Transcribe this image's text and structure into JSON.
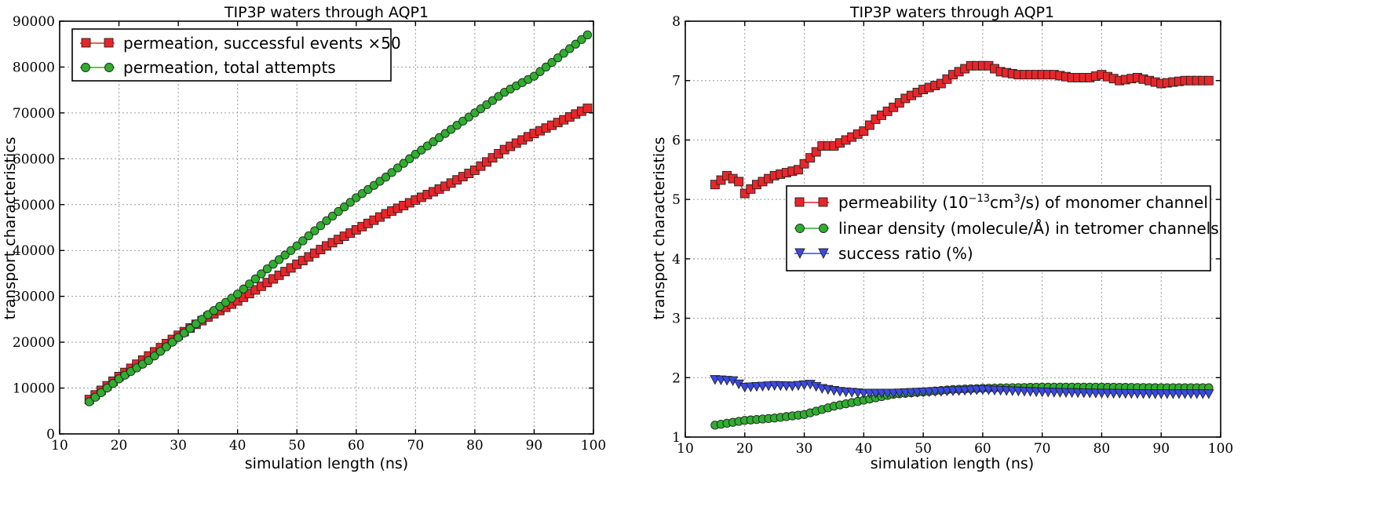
{
  "chart_data": [
    {
      "type": "line",
      "title": "TIP3P waters through AQP1",
      "xlabel": "simulation length (ns)",
      "ylabel": "transport characteristics",
      "xlim": [
        10,
        100
      ],
      "ylim": [
        0,
        90000
      ],
      "xticks": [
        10,
        20,
        30,
        40,
        50,
        60,
        70,
        80,
        90,
        100
      ],
      "yticks": [
        0,
        10000,
        20000,
        30000,
        40000,
        50000,
        60000,
        70000,
        80000,
        90000
      ],
      "grid": true,
      "legend_position": "top-left",
      "series": [
        {
          "name": "permeation, successful events ×50",
          "marker": "square",
          "color": "#e8262a",
          "x_start": 15,
          "x_end": 99,
          "x_step": 1,
          "y_keypoints": [
            [
              15,
              7500
            ],
            [
              20,
              12500
            ],
            [
              25,
              17000
            ],
            [
              30,
              21500
            ],
            [
              35,
              25500
            ],
            [
              40,
              29000
            ],
            [
              45,
              33000
            ],
            [
              50,
              37000
            ],
            [
              55,
              41000
            ],
            [
              60,
              44500
            ],
            [
              65,
              48000
            ],
            [
              70,
              51000
            ],
            [
              75,
              54000
            ],
            [
              80,
              57500
            ],
            [
              85,
              62000
            ],
            [
              90,
              65500
            ],
            [
              95,
              68500
            ],
            [
              99,
              71000
            ]
          ]
        },
        {
          "name": "permeation, total attempts",
          "marker": "circle",
          "color": "#2fae2f",
          "x_start": 15,
          "x_end": 99,
          "x_step": 1,
          "y_keypoints": [
            [
              15,
              7000
            ],
            [
              20,
              12000
            ],
            [
              25,
              16000
            ],
            [
              30,
              21000
            ],
            [
              35,
              26000
            ],
            [
              40,
              30500
            ],
            [
              45,
              36000
            ],
            [
              50,
              41000
            ],
            [
              55,
              46500
            ],
            [
              60,
              51500
            ],
            [
              65,
              56000
            ],
            [
              70,
              61000
            ],
            [
              75,
              65500
            ],
            [
              80,
              70000
            ],
            [
              85,
              74500
            ],
            [
              90,
              78000
            ],
            [
              95,
              83000
            ],
            [
              99,
              87000
            ]
          ]
        }
      ]
    },
    {
      "type": "line",
      "title": "TIP3P waters through AQP1",
      "xlabel": "simulation length (ns)",
      "ylabel": "transport characteristics",
      "xlim": [
        10,
        100
      ],
      "ylim": [
        1,
        8
      ],
      "xticks": [
        10,
        20,
        30,
        40,
        50,
        60,
        70,
        80,
        90,
        100
      ],
      "yticks": [
        1,
        2,
        3,
        4,
        5,
        6,
        7,
        8
      ],
      "grid": true,
      "legend_position": "center-right",
      "series": [
        {
          "name": "permeability (10",
          "name_sup": "−13",
          "name_mid": "cm",
          "name_sup2": "3",
          "name_end": "/s) of monomer channel",
          "marker": "square",
          "color": "#e8262a",
          "x_start": 15,
          "x_end": 98,
          "x_step": 1,
          "y_keypoints": [
            [
              15,
              5.25
            ],
            [
              17,
              5.4
            ],
            [
              19,
              5.3
            ],
            [
              20,
              5.1
            ],
            [
              22,
              5.25
            ],
            [
              25,
              5.4
            ],
            [
              27,
              5.45
            ],
            [
              29,
              5.5
            ],
            [
              30,
              5.6
            ],
            [
              33,
              5.9
            ],
            [
              35,
              5.9
            ],
            [
              37,
              6.0
            ],
            [
              40,
              6.15
            ],
            [
              42,
              6.35
            ],
            [
              45,
              6.55
            ],
            [
              47,
              6.7
            ],
            [
              50,
              6.85
            ],
            [
              53,
              6.95
            ],
            [
              55,
              7.1
            ],
            [
              58,
              7.25
            ],
            [
              61,
              7.25
            ],
            [
              63,
              7.15
            ],
            [
              66,
              7.1
            ],
            [
              70,
              7.1
            ],
            [
              72,
              7.1
            ],
            [
              75,
              7.05
            ],
            [
              78,
              7.05
            ],
            [
              80,
              7.1
            ],
            [
              83,
              7.0
            ],
            [
              86,
              7.05
            ],
            [
              90,
              6.95
            ],
            [
              94,
              7.0
            ],
            [
              98,
              7.0
            ]
          ]
        },
        {
          "name": "linear density (molecule/Å) in tetromer channels",
          "marker": "circle",
          "color": "#2fae2f",
          "x_start": 15,
          "x_end": 98,
          "x_step": 1,
          "y_keypoints": [
            [
              15,
              1.2
            ],
            [
              20,
              1.28
            ],
            [
              25,
              1.32
            ],
            [
              30,
              1.38
            ],
            [
              35,
              1.52
            ],
            [
              40,
              1.62
            ],
            [
              45,
              1.72
            ],
            [
              50,
              1.76
            ],
            [
              55,
              1.8
            ],
            [
              60,
              1.82
            ],
            [
              65,
              1.83
            ],
            [
              70,
              1.84
            ],
            [
              75,
              1.84
            ],
            [
              80,
              1.84
            ],
            [
              90,
              1.83
            ],
            [
              98,
              1.83
            ]
          ]
        },
        {
          "name": "success ratio (%)",
          "marker": "triangle-down",
          "color": "#3a49e6",
          "x_start": 15,
          "x_end": 98,
          "x_step": 1,
          "y_keypoints": [
            [
              15,
              1.97
            ],
            [
              18,
              1.95
            ],
            [
              20,
              1.84
            ],
            [
              25,
              1.87
            ],
            [
              28,
              1.86
            ],
            [
              31,
              1.89
            ],
            [
              33,
              1.82
            ],
            [
              36,
              1.77
            ],
            [
              40,
              1.74
            ],
            [
              45,
              1.74
            ],
            [
              50,
              1.76
            ],
            [
              55,
              1.78
            ],
            [
              60,
              1.8
            ],
            [
              65,
              1.78
            ],
            [
              70,
              1.76
            ],
            [
              80,
              1.74
            ],
            [
              90,
              1.73
            ],
            [
              98,
              1.73
            ]
          ]
        }
      ]
    }
  ]
}
